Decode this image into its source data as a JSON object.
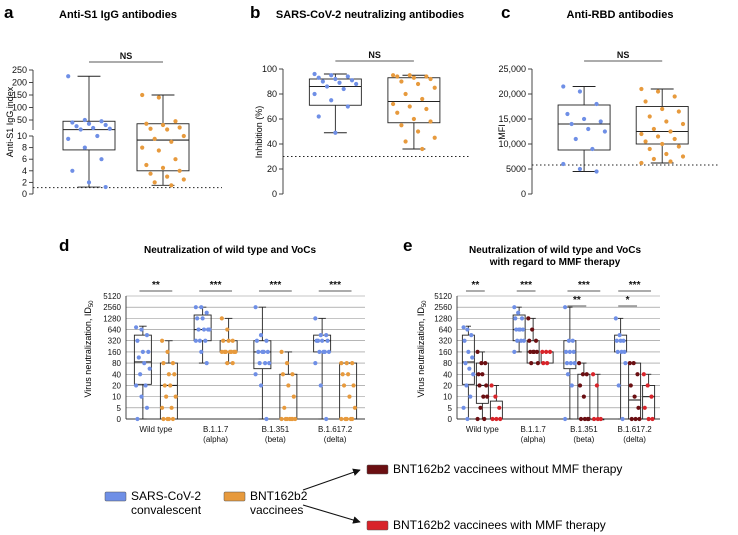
{
  "colors": {
    "convalescent": "#6f8fe6",
    "vaccinees": "#e79a3d",
    "without_mmf": "#6b0f12",
    "with_mmf": "#d8242a",
    "axis": "#333333",
    "dotted": "#222222"
  },
  "chart_data": [
    {
      "id": "a",
      "panel_label": "a",
      "type": "box",
      "title": "Anti-S1 IgG antibodies",
      "ylabel": "Anti-S1 IgG index",
      "axis_break": {
        "lower": [
          0,
          10
        ],
        "upper": [
          10,
          250
        ]
      },
      "ticks_lower": [
        "0",
        "2",
        "4",
        "6",
        "8",
        "10"
      ],
      "ticks_upper": [
        "50",
        "100",
        "150",
        "200",
        "250"
      ],
      "threshold": 1.1,
      "significance": [
        {
          "label": "NS",
          "from": 0,
          "to": 1
        }
      ],
      "groups": [
        {
          "name": "SARS-CoV-2 convalescent",
          "color_key": "convalescent",
          "min": 1.2,
          "q1": 7.6,
          "median": 11.5,
          "q3": 45,
          "max": 225,
          "points": [
            225,
            50,
            45,
            40,
            35,
            30,
            25,
            18,
            15,
            12,
            10,
            9.5,
            8,
            6,
            4,
            2,
            1.2
          ]
        },
        {
          "name": "BNT162b2 vaccinees",
          "color_key": "vaccinees",
          "min": 1.5,
          "q1": 4,
          "median": 9.3,
          "q3": 35,
          "max": 150,
          "points": [
            150,
            140,
            45,
            35,
            30,
            20,
            15,
            12,
            10,
            9.5,
            9,
            8,
            7.5,
            6,
            5,
            4.5,
            4,
            3.5,
            3,
            2.5,
            2,
            1.5
          ]
        }
      ]
    },
    {
      "id": "b",
      "panel_label": "b",
      "type": "box",
      "title": "SARS-CoV-2 neutralizing antibodies",
      "ylabel": "Inhibition (%)",
      "ylim": [
        0,
        100
      ],
      "ticks": [
        "0",
        "20",
        "40",
        "60",
        "80",
        "100"
      ],
      "threshold": 30,
      "significance": [
        {
          "label": "NS",
          "from": 0,
          "to": 1
        }
      ],
      "groups": [
        {
          "name": "SARS-CoV-2 convalescent",
          "color_key": "convalescent",
          "min": 49,
          "q1": 71,
          "median": 86,
          "q3": 92,
          "max": 96,
          "points": [
            96,
            95,
            94,
            93,
            92,
            91,
            90,
            89,
            88,
            86,
            84,
            80,
            75,
            70,
            62,
            49
          ]
        },
        {
          "name": "BNT162b2 vaccinees",
          "color_key": "vaccinees",
          "min": 36,
          "q1": 57,
          "median": 74,
          "q3": 93,
          "max": 95,
          "points": [
            95,
            95,
            94,
            94,
            93,
            92,
            90,
            88,
            85,
            80,
            76,
            72,
            70,
            68,
            65,
            60,
            58,
            55,
            50,
            45,
            42,
            36
          ]
        }
      ]
    },
    {
      "id": "c",
      "panel_label": "c",
      "type": "box",
      "title": "Anti-RBD antibodies",
      "ylabel": "MFI",
      "ylim": [
        0,
        25000
      ],
      "ticks": [
        "0",
        "5000",
        "10,000",
        "15,000",
        "20,000",
        "25,000"
      ],
      "threshold": 5800,
      "significance": [
        {
          "label": "NS",
          "from": 0,
          "to": 1
        }
      ],
      "groups": [
        {
          "name": "SARS-CoV-2 convalescent",
          "color_key": "convalescent",
          "min": 4500,
          "q1": 8800,
          "median": 14000,
          "q3": 17800,
          "max": 21500,
          "points": [
            21500,
            20500,
            18000,
            16000,
            15000,
            14500,
            14000,
            13000,
            12500,
            11000,
            9000,
            6000,
            5000,
            4500
          ]
        },
        {
          "name": "BNT162b2 vaccinees",
          "color_key": "vaccinees",
          "min": 6200,
          "q1": 10000,
          "median": 12500,
          "q3": 17500,
          "max": 21000,
          "points": [
            21000,
            20500,
            19500,
            18500,
            17000,
            16500,
            15500,
            14500,
            14000,
            13000,
            12500,
            12000,
            11500,
            11000,
            10500,
            10000,
            9500,
            9000,
            8000,
            7500,
            7000,
            6500,
            6200
          ]
        }
      ]
    },
    {
      "id": "d",
      "panel_label": "d",
      "type": "box",
      "title": "Neutralization of wild type and VoCs",
      "ylabel_main": "Virus neutralization, ID",
      "ylabel_sub": "50",
      "y_levels": [
        "0",
        "5",
        "10",
        "20",
        "40",
        "80",
        "160",
        "320",
        "640",
        "1280",
        "2560",
        "5120"
      ],
      "categories": [
        {
          "label": "Wild type",
          "sublabel": ""
        },
        {
          "label": "B.1.1.7",
          "sublabel": "(alpha)"
        },
        {
          "label": "B.1.351",
          "sublabel": "(beta)"
        },
        {
          "label": "B.1.617.2",
          "sublabel": "(delta)"
        }
      ],
      "significance": [
        {
          "label": "**",
          "category": 0,
          "from": 0,
          "to": 1
        },
        {
          "label": "***",
          "category": 1,
          "from": 0,
          "to": 1
        },
        {
          "label": "***",
          "category": 2,
          "from": 0,
          "to": 1
        },
        {
          "label": "***",
          "category": 3,
          "from": 0,
          "to": 1
        }
      ],
      "series": [
        {
          "name": "SARS-CoV-2 convalescent",
          "color_key": "convalescent",
          "boxes": [
            {
              "min": 0,
              "q1": 3.1,
              "median": 5.1,
              "q3": 7.5,
              "max": 8.3,
              "points": [
                8.2,
                8,
                7.5,
                7,
                6,
                6,
                5.5,
                5,
                4.5,
                4,
                3,
                3,
                2,
                1,
                0
              ]
            },
            {
              "min": 5,
              "q1": 7,
              "median": 8,
              "q3": 9.3,
              "max": 10,
              "points": [
                10,
                10,
                9.5,
                9,
                9,
                8,
                8,
                8,
                8,
                7,
                7,
                7,
                6,
                5
              ]
            },
            {
              "min": 0,
              "q1": 4.5,
              "median": 6,
              "q3": 7,
              "max": 10,
              "points": [
                10,
                7.5,
                7,
                7,
                6,
                6,
                6,
                6,
                5,
                5,
                5,
                4,
                3,
                0
              ]
            },
            {
              "min": 0,
              "q1": 6,
              "median": 7,
              "q3": 7.5,
              "max": 9,
              "points": [
                9,
                7.5,
                7.5,
                7,
                7,
                7,
                7,
                6,
                6,
                6,
                6,
                5,
                3,
                0
              ]
            }
          ]
        },
        {
          "name": "BNT162b2 vaccinees",
          "color_key": "vaccinees",
          "boxes": [
            {
              "min": 0,
              "q1": 0,
              "median": 3,
              "q3": 5,
              "max": 7,
              "points": [
                7,
                6,
                5,
                5,
                4,
                4,
                3,
                3,
                2,
                2,
                1,
                1,
                0,
                0,
                0,
                0
              ]
            },
            {
              "min": 5,
              "q1": 6,
              "median": 6,
              "q3": 7,
              "max": 9,
              "points": [
                9,
                8,
                7,
                7,
                7,
                6,
                6,
                6,
                6,
                6,
                6,
                6,
                5,
                5
              ]
            },
            {
              "min": 0,
              "q1": 0,
              "median": 0,
              "q3": 4,
              "max": 6,
              "points": [
                6,
                5,
                4,
                4,
                3,
                2,
                1,
                0,
                0,
                0,
                0,
                0,
                0,
                0
              ]
            },
            {
              "min": 0,
              "q1": 0,
              "median": 0,
              "q3": 5,
              "max": 5,
              "points": [
                5,
                5,
                5,
                4,
                4,
                3,
                3,
                2,
                1,
                0,
                0,
                0,
                0,
                0
              ]
            }
          ]
        }
      ]
    },
    {
      "id": "e",
      "panel_label": "e",
      "type": "box",
      "title_line1": "Neutralization of wild type and VoCs",
      "title_line2": "with regard to MMF therapy",
      "ylabel_main": "Virus neutralization, ID",
      "ylabel_sub": "50",
      "y_levels": [
        "0",
        "5",
        "10",
        "20",
        "40",
        "80",
        "160",
        "320",
        "640",
        "1280",
        "2560",
        "5120"
      ],
      "categories": [
        {
          "label": "Wild type",
          "sublabel": ""
        },
        {
          "label": "B.1.1.7",
          "sublabel": "(alpha)"
        },
        {
          "label": "B.1.351",
          "sublabel": "(beta)"
        },
        {
          "label": "B.1.617.2",
          "sublabel": "(delta)"
        }
      ],
      "significance": [
        {
          "label": "**",
          "category": 0,
          "from": 0,
          "to": 1
        },
        {
          "label": "***",
          "category": 1,
          "from": 0,
          "to": 1
        },
        {
          "label": "***",
          "category": 2,
          "from": 0,
          "to": 2
        },
        {
          "label": "**",
          "category": 2,
          "from": 0,
          "to": 1
        },
        {
          "label": "***",
          "category": 3,
          "from": 0,
          "to": 2
        },
        {
          "label": "*",
          "category": 3,
          "from": 0,
          "to": 1
        }
      ],
      "series": [
        {
          "name": "SARS-CoV-2 convalescent",
          "color_key": "convalescent",
          "boxes": [
            {
              "min": 0,
              "q1": 3.1,
              "median": 5.1,
              "q3": 7.5,
              "max": 8.3,
              "points": [
                8.2,
                8,
                7.5,
                7,
                6,
                5.5,
                5,
                4.5,
                4,
                3,
                2,
                1,
                0
              ]
            },
            {
              "min": 6,
              "q1": 7,
              "median": 8,
              "q3": 9.3,
              "max": 10,
              "points": [
                10,
                9.5,
                9,
                9,
                8,
                8,
                8,
                8,
                7,
                7,
                7,
                6
              ]
            },
            {
              "min": 0,
              "q1": 4.5,
              "median": 6,
              "q3": 7,
              "max": 10,
              "points": [
                10,
                7,
                7,
                6,
                6,
                6,
                5,
                5,
                5,
                4,
                3,
                0
              ]
            },
            {
              "min": 0,
              "q1": 6,
              "median": 7,
              "q3": 7.5,
              "max": 9,
              "points": [
                9,
                7.5,
                7,
                7,
                7,
                6,
                6,
                6,
                5,
                3,
                0
              ]
            }
          ]
        },
        {
          "name": "BNT162b2 vaccinees without MMF therapy",
          "color_key": "without_mmf",
          "boxes": [
            {
              "min": 0,
              "q1": 1.4,
              "median": 3,
              "q3": 5,
              "max": 6,
              "points": [
                6,
                5,
                5,
                4,
                4,
                3,
                3,
                2,
                2,
                1,
                0,
                0
              ]
            },
            {
              "min": 5,
              "q1": 5,
              "median": 6,
              "q3": 7,
              "max": 9,
              "points": [
                9,
                8,
                7,
                7,
                6,
                6,
                6,
                6,
                5,
                5
              ]
            },
            {
              "min": 0,
              "q1": 0,
              "median": 0,
              "q3": 4,
              "max": 5,
              "points": [
                5,
                4,
                4,
                3,
                2,
                0,
                0,
                0,
                0
              ]
            },
            {
              "min": 0,
              "q1": 0,
              "median": 1.7,
              "q3": 5,
              "max": 5,
              "points": [
                5,
                5,
                4,
                3,
                2,
                1,
                0,
                0,
                0
              ]
            }
          ]
        },
        {
          "name": "BNT162b2 vaccinees with MMF therapy",
          "color_key": "with_mmf",
          "boxes": [
            {
              "min": 0,
              "q1": 0,
              "median": 0,
              "q3": 1.6,
              "max": 3,
              "points": [
                3,
                2,
                1,
                0,
                0,
                0
              ]
            },
            {
              "min": 5,
              "q1": 5,
              "median": 6,
              "q3": 6,
              "max": 6,
              "points": [
                6,
                6,
                6,
                5,
                5
              ]
            },
            {
              "min": 0,
              "q1": 0,
              "median": 0,
              "q3": 0,
              "max": 4,
              "points": [
                4,
                3,
                0,
                0,
                0
              ]
            },
            {
              "min": 0,
              "q1": 0,
              "median": 2,
              "q3": 3,
              "max": 4,
              "points": [
                4,
                3,
                2,
                1,
                0,
                0
              ]
            }
          ]
        }
      ]
    }
  ],
  "legend": {
    "convalescent_line1": "SARS-CoV-2",
    "convalescent_line2": "convalescent",
    "vaccinees_line1": "BNT162b2",
    "vaccinees_line2": "vaccinees",
    "without_mmf": "BNT162b2 vaccinees without MMF therapy",
    "with_mmf": "BNT162b2 vaccinees with  MMF therapy"
  }
}
